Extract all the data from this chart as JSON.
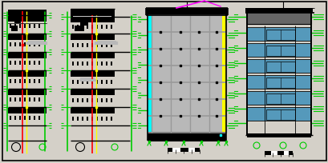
{
  "bg": "#d4d0c8",
  "drawing_bg": "#d4d0c8",
  "border_color": "#000000",
  "green": "#00cc00",
  "red": "#ff0000",
  "yellow": "#ffff00",
  "cyan": "#00ffff",
  "magenta": "#ff00ff",
  "gray": "#808080",
  "light_gray": "#b8b8b8",
  "white": "#ffffff",
  "black": "#000000",
  "steel_blue": "#5599bb",
  "dark_gray": "#666666",
  "mid_gray": "#999999"
}
